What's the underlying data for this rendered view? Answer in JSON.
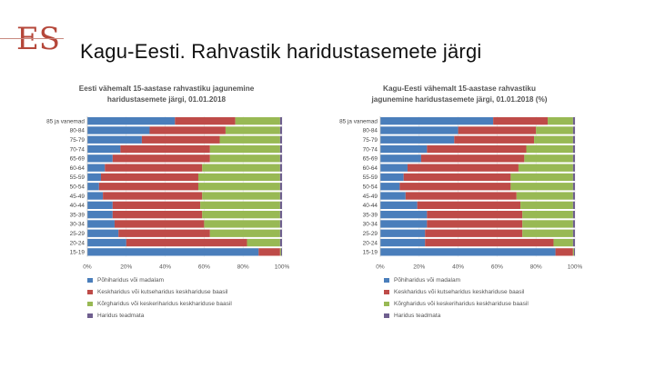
{
  "slide": {
    "logo_text": "ES",
    "title": "Kagu-Eesti. Rahvastik haridustasemete järgi"
  },
  "chart_data": [
    {
      "type": "bar",
      "orientation": "horizontal",
      "stacked": true,
      "title_lines": [
        "Eesti vähemalt 15-aastase rahvastiku jagunemine",
        "haridustasemete järgi, 01.01.2018"
      ],
      "categories": [
        "85 ja vanemad",
        "80-84",
        "75-79",
        "70-74",
        "65-69",
        "60-64",
        "55-59",
        "50-54",
        "45-49",
        "40-44",
        "35-39",
        "30-34",
        "25-29",
        "20-24",
        "15-19"
      ],
      "xlim": [
        0,
        100
      ],
      "x_ticks": [
        "0%",
        "20%",
        "40%",
        "60%",
        "80%",
        "100%"
      ],
      "series": [
        {
          "name": "Põhiharidus või madalam",
          "color": "#4a7ebb",
          "values": [
            45,
            32,
            28,
            17,
            13,
            9,
            7,
            6,
            8,
            13,
            13,
            14,
            16,
            20,
            88
          ]
        },
        {
          "name": "Keskharidus või kutseharidus keskhariduse baasil",
          "color": "#be4b48",
          "values": [
            31,
            39,
            40,
            46,
            50,
            50,
            50,
            51,
            51,
            45,
            46,
            46,
            47,
            62,
            11
          ]
        },
        {
          "name": "Kõrgharidus või keskeriharidus keskhariduse baasil",
          "color": "#98b954",
          "values": [
            23,
            28,
            31,
            36,
            36,
            40,
            42,
            42,
            40,
            41,
            40,
            39,
            36,
            17,
            0.5
          ]
        },
        {
          "name": "Haridus teadmata",
          "color": "#6f5f8f",
          "values": [
            1,
            1,
            1,
            1,
            1,
            1,
            1,
            1,
            1,
            1,
            1,
            1,
            1,
            1,
            0.5
          ]
        }
      ]
    },
    {
      "type": "bar",
      "orientation": "horizontal",
      "stacked": true,
      "title_lines": [
        "Kagu-Eesti vähemalt 15-aastase rahvastiku",
        "jagunemine haridustasemete järgi, 01.01.2018 (%)"
      ],
      "categories": [
        "85 ja vanemad",
        "80-84",
        "75-79",
        "70-74",
        "65-69",
        "60-64",
        "55-59",
        "50-54",
        "45-49",
        "40-44",
        "35-39",
        "30-34",
        "25-29",
        "20-24",
        "15-19"
      ],
      "xlim": [
        0,
        100
      ],
      "x_ticks": [
        "0%",
        "20%",
        "40%",
        "60%",
        "80%",
        "100%"
      ],
      "series": [
        {
          "name": "Põhiharidus või madalam",
          "color": "#4a7ebb",
          "values": [
            58,
            40,
            38,
            24,
            21,
            14,
            12,
            10,
            13,
            19,
            24,
            24,
            23,
            23,
            90
          ]
        },
        {
          "name": "Keskharidus või kutseharidus keskhariduse baasil",
          "color": "#be4b48",
          "values": [
            28,
            40,
            41,
            51,
            53,
            57,
            55,
            57,
            57,
            53,
            49,
            49,
            50,
            66,
            9
          ]
        },
        {
          "name": "Kõrgharidus või keskeriharidus keskhariduse baasil",
          "color": "#98b954",
          "values": [
            13,
            19,
            20,
            24,
            25,
            28,
            32,
            32,
            29,
            27,
            26,
            26,
            26,
            10,
            0.5
          ]
        },
        {
          "name": "Haridus teadmata",
          "color": "#6f5f8f",
          "values": [
            1,
            1,
            1,
            1,
            1,
            1,
            1,
            1,
            1,
            1,
            1,
            1,
            1,
            1,
            0.5
          ]
        }
      ]
    }
  ]
}
